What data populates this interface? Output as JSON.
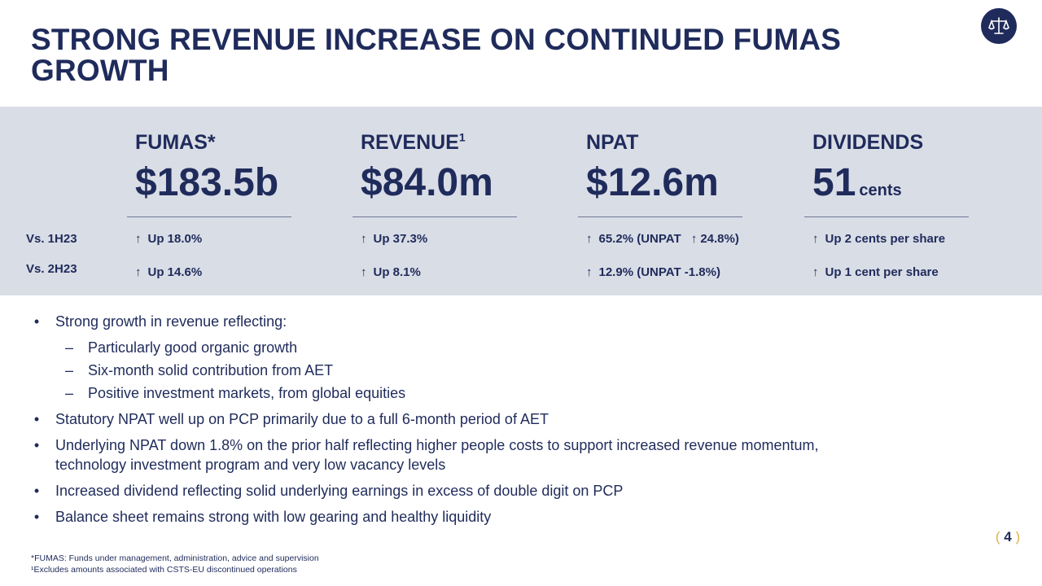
{
  "slide": {
    "title": "STRONG REVENUE INCREASE ON CONTINUED FUMAS GROWTH",
    "page_number": "4",
    "logo_icon": "scales-of-justice-icon"
  },
  "metrics": [
    {
      "label": "FUMAS*",
      "superscript": "",
      "value": "$183.5b",
      "unit": "",
      "vs_1h23": "Up 18.0%",
      "vs_2h23": "Up 14.6%"
    },
    {
      "label": "REVENUE",
      "superscript": "1",
      "value": "$84.0m",
      "unit": "",
      "vs_1h23": "Up 37.3%",
      "vs_2h23": "Up 8.1%"
    },
    {
      "label": "NPAT",
      "superscript": "",
      "value": "$12.6m",
      "unit": "",
      "vs_1h23": "65.2% (UNPAT",
      "vs_1h23_extra": "24.8%)",
      "vs_2h23": "12.9% (UNPAT -1.8%)"
    },
    {
      "label": "DIVIDENDS",
      "superscript": "",
      "value": "51",
      "unit": "cents",
      "vs_1h23": "Up 2 cents per share",
      "vs_2h23": "Up 1 cent per share"
    }
  ],
  "row_labels": {
    "vs_1h23": "Vs. 1H23",
    "vs_2h23": "Vs. 2H23"
  },
  "arrow_glyph": "↑",
  "bullets": {
    "b1": "Strong growth in revenue reflecting:",
    "b1_subs": [
      "Particularly good organic growth",
      "Six-month solid contribution from AET",
      "Positive investment markets, from global equities"
    ],
    "b2": "Statutory NPAT well up on PCP primarily due to a full 6-month period of AET",
    "b3": "Underlying NPAT down 1.8% on the prior half reflecting higher people costs to support increased revenue momentum, technology investment program and very low vacancy levels",
    "b4": "Increased dividend reflecting solid underlying earnings in excess of double digit on PCP",
    "b5": "Balance sheet remains strong with low gearing and healthy liquidity"
  },
  "footnotes": {
    "f1": "*FUMAS: Funds under management, administration, advice and supervision",
    "f2": "¹Excludes amounts associated with CSTS-EU discontinued operations"
  },
  "colors": {
    "navy": "#1f2b5b",
    "band": "#d9dde6",
    "accent": "#e0b14a"
  }
}
